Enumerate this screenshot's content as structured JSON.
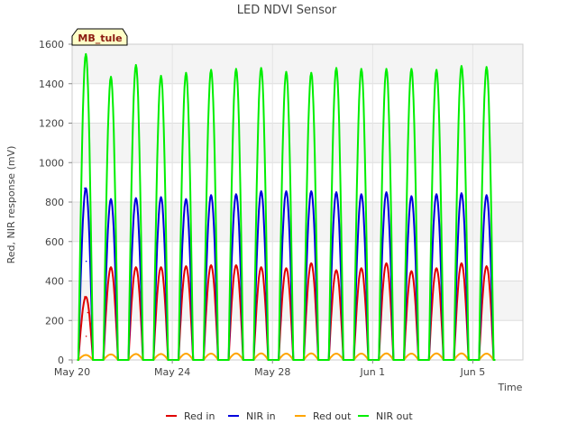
{
  "chart_data": {
    "type": "line",
    "title": "LED NDVI Sensor",
    "xlabel": "Time",
    "ylabel": "Red, NIR response (mV)",
    "badge": "MB_tule",
    "x_unit": "date",
    "x_range": [
      "2024-05-20",
      "2024-06-07"
    ],
    "y_range": [
      0,
      1600
    ],
    "y_ticks": [
      {
        "value": 0,
        "label": "0"
      },
      {
        "value": 200,
        "label": "200"
      },
      {
        "value": 400,
        "label": "400"
      },
      {
        "value": 600,
        "label": "600"
      },
      {
        "value": 800,
        "label": "800"
      },
      {
        "value": 1000,
        "label": "1000"
      },
      {
        "value": 1200,
        "label": "1200"
      },
      {
        "value": 1400,
        "label": "1400"
      },
      {
        "value": 1600,
        "label": "1600"
      }
    ],
    "x_ticks": [
      {
        "value": "2024-05-20",
        "label": "May 20"
      },
      {
        "value": "2024-05-24",
        "label": "May 24"
      },
      {
        "value": "2024-05-28",
        "label": "May 28"
      },
      {
        "value": "2024-06-01",
        "label": "Jun 1"
      },
      {
        "value": "2024-06-05",
        "label": "Jun 5"
      }
    ],
    "grid": true,
    "legend_position": "bottom",
    "background_bands": "alternating light gray",
    "series": [
      {
        "name": "Red in",
        "color": "#e00000",
        "daily_peaks": [
          320,
          470,
          470,
          470,
          475,
          480,
          480,
          470,
          465,
          490,
          455,
          465,
          490,
          450,
          465,
          490,
          475
        ],
        "points": [
          [
            "2024-05-20T12:00",
            320
          ],
          [
            "2024-05-20T13:30",
            120
          ],
          [
            "2024-05-20T15:00",
            240
          ],
          [
            "2024-05-21T13:00",
            470
          ],
          [
            "2024-05-22T13:00",
            470
          ],
          [
            "2024-05-23T13:00",
            470
          ],
          [
            "2024-05-24T13:00",
            475
          ],
          [
            "2024-05-25T13:00",
            480
          ],
          [
            "2024-05-26T13:00",
            480
          ],
          [
            "2024-05-27T13:00",
            470
          ],
          [
            "2024-05-28T13:00",
            465
          ],
          [
            "2024-05-29T13:00",
            490
          ],
          [
            "2024-05-30T13:00",
            455
          ],
          [
            "2024-05-31T13:00",
            465
          ],
          [
            "2024-06-01T13:00",
            490
          ],
          [
            "2024-06-02T13:00",
            450
          ],
          [
            "2024-06-03T13:00",
            465
          ],
          [
            "2024-06-04T13:00",
            490
          ],
          [
            "2024-06-05T13:00",
            475
          ]
        ]
      },
      {
        "name": "NIR in",
        "color": "#0000dd",
        "daily_peaks": [
          870,
          815,
          820,
          825,
          815,
          835,
          840,
          855,
          855,
          855,
          850,
          840,
          850,
          830,
          840,
          845,
          835
        ],
        "points": [
          [
            "2024-05-20T12:00",
            870
          ],
          [
            "2024-05-20T13:30",
            500
          ],
          [
            "2024-05-21T13:00",
            815
          ],
          [
            "2024-05-22T13:00",
            820
          ],
          [
            "2024-05-23T13:00",
            825
          ],
          [
            "2024-05-24T13:00",
            815
          ],
          [
            "2024-05-25T13:00",
            835
          ],
          [
            "2024-05-26T13:00",
            840
          ],
          [
            "2024-05-27T13:00",
            855
          ],
          [
            "2024-05-28T13:00",
            855
          ],
          [
            "2024-05-29T13:00",
            855
          ],
          [
            "2024-05-30T13:00",
            850
          ],
          [
            "2024-05-31T13:00",
            840
          ],
          [
            "2024-06-01T13:00",
            850
          ],
          [
            "2024-06-02T13:00",
            830
          ],
          [
            "2024-06-03T13:00",
            840
          ],
          [
            "2024-06-04T13:00",
            845
          ],
          [
            "2024-06-05T13:00",
            835
          ]
        ]
      },
      {
        "name": "Red out",
        "color": "#ffa500",
        "daily_peaks": [
          25,
          28,
          30,
          30,
          32,
          32,
          33,
          33,
          32,
          33,
          32,
          32,
          33,
          32,
          33,
          33,
          32
        ],
        "points": [
          [
            "2024-05-20T13:00",
            25
          ],
          [
            "2024-05-21T13:00",
            28
          ],
          [
            "2024-05-22T13:00",
            30
          ],
          [
            "2024-05-23T13:00",
            30
          ],
          [
            "2024-05-24T13:00",
            32
          ],
          [
            "2024-05-25T13:00",
            32
          ],
          [
            "2024-05-26T13:00",
            33
          ],
          [
            "2024-05-27T13:00",
            33
          ],
          [
            "2024-05-28T13:00",
            32
          ],
          [
            "2024-05-29T13:00",
            33
          ],
          [
            "2024-05-30T13:00",
            32
          ],
          [
            "2024-05-31T13:00",
            32
          ],
          [
            "2024-06-01T13:00",
            33
          ],
          [
            "2024-06-02T13:00",
            32
          ],
          [
            "2024-06-03T13:00",
            33
          ],
          [
            "2024-06-04T13:00",
            33
          ],
          [
            "2024-06-05T13:00",
            32
          ]
        ]
      },
      {
        "name": "NIR out",
        "color": "#00ee00",
        "daily_peaks": [
          1550,
          1435,
          1495,
          1440,
          1455,
          1470,
          1475,
          1480,
          1460,
          1455,
          1480,
          1475,
          1475,
          1475,
          1470,
          1490,
          1485
        ],
        "points": [
          [
            "2024-05-20T13:00",
            1550
          ],
          [
            "2024-05-21T13:00",
            1435
          ],
          [
            "2024-05-22T13:00",
            1495
          ],
          [
            "2024-05-23T13:00",
            1440
          ],
          [
            "2024-05-24T13:00",
            1455
          ],
          [
            "2024-05-25T13:00",
            1470
          ],
          [
            "2024-05-26T13:00",
            1475
          ],
          [
            "2024-05-27T13:00",
            1480
          ],
          [
            "2024-05-28T13:00",
            1460
          ],
          [
            "2024-05-29T13:00",
            1455
          ],
          [
            "2024-05-30T13:00",
            1480
          ],
          [
            "2024-05-31T13:00",
            1475
          ],
          [
            "2024-06-01T13:00",
            1475
          ],
          [
            "2024-06-02T13:00",
            1475
          ],
          [
            "2024-06-03T13:00",
            1470
          ],
          [
            "2024-06-04T13:00",
            1490
          ],
          [
            "2024-06-05T13:00",
            1485
          ]
        ]
      }
    ]
  }
}
